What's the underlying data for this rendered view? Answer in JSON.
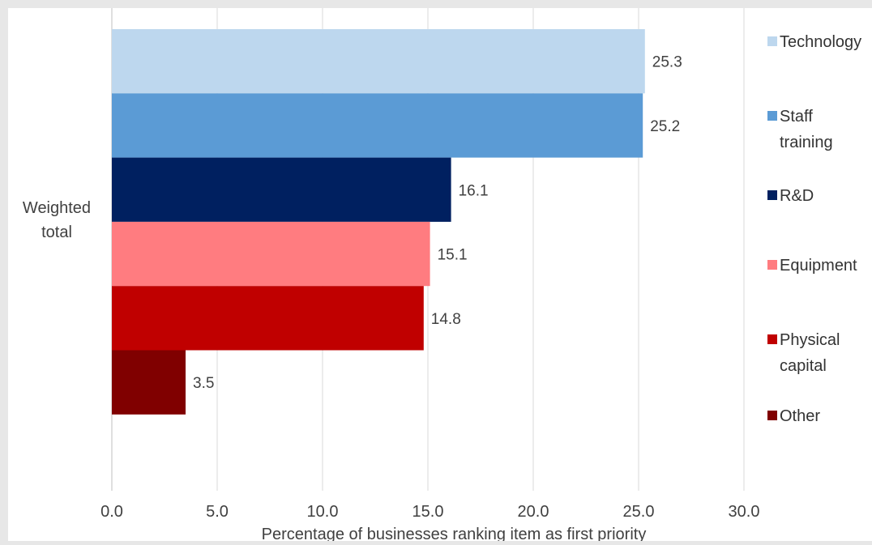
{
  "chart_data": {
    "type": "bar",
    "orientation": "horizontal",
    "categories": [
      "Weighted total"
    ],
    "series": [
      {
        "name": "Technology",
        "values": [
          25.3
        ],
        "color": "#bdd7ee"
      },
      {
        "name": "Staff training",
        "values": [
          25.2
        ],
        "color": "#5b9bd5"
      },
      {
        "name": "R&D",
        "values": [
          16.1
        ],
        "color": "#002060"
      },
      {
        "name": "Equipment",
        "values": [
          15.1
        ],
        "color": "#ff7c80"
      },
      {
        "name": "Physical capital",
        "values": [
          14.8
        ],
        "color": "#c00000"
      },
      {
        "name": "Other",
        "values": [
          3.5
        ],
        "color": "#800000"
      }
    ],
    "data_labels": [
      "25.3",
      "25.2",
      "16.1",
      "15.1",
      "14.8",
      "3.5"
    ],
    "xlabel": "Percentage of businesses ranking item as first priority",
    "xlim": [
      0,
      30
    ],
    "xticks": [
      "0.0",
      "5.0",
      "10.0",
      "15.0",
      "20.0",
      "25.0",
      "30.0"
    ],
    "grid": true,
    "legend_position": "right"
  }
}
